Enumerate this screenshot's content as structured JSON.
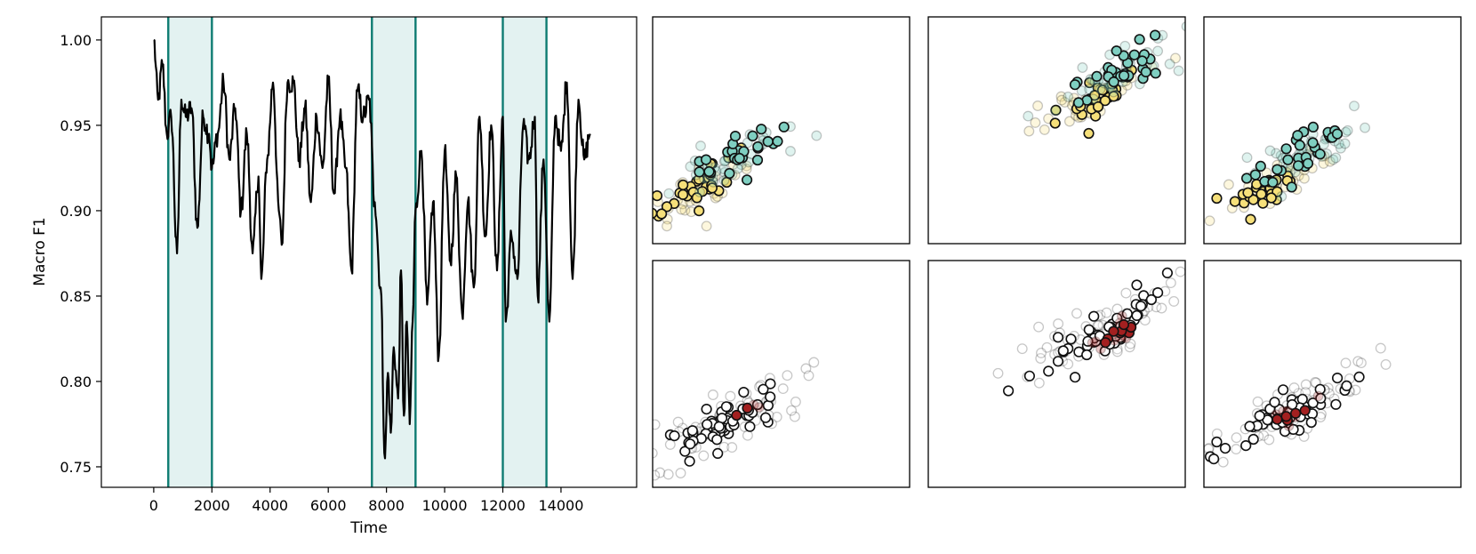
{
  "chart_data": [
    {
      "type": "line",
      "xlabel": "Time",
      "ylabel": "Macro F1",
      "xlim": [
        -1800,
        16600
      ],
      "ylim": [
        0.738,
        1.0135
      ],
      "x_ticks": [
        0,
        2000,
        4000,
        6000,
        8000,
        10000,
        12000,
        14000
      ],
      "y_ticks": [
        0.75,
        0.8,
        0.85,
        0.9,
        0.95,
        1.0
      ],
      "y_tick_labels": [
        "0.75",
        "0.80",
        "0.85",
        "0.90",
        "0.95",
        "1.00"
      ],
      "line_color": "#000000",
      "shaded_windows": [
        [
          500,
          2000
        ],
        [
          7500,
          9000
        ],
        [
          12000,
          13500
        ]
      ],
      "shade_color": "#e3f2f1",
      "window_border_color": "#0e7c72",
      "series": [
        {
          "x": [
            0,
            150,
            300,
            450,
            600,
            800,
            950,
            1100,
            1300,
            1500,
            1700,
            1900,
            2000,
            2200,
            2400,
            2600,
            2800,
            3000,
            3200,
            3400,
            3600,
            3700,
            3900,
            4100,
            4300,
            4400,
            4600,
            4800,
            5000,
            5200,
            5400,
            5600,
            5800,
            6000,
            6200,
            6400,
            6600,
            6800,
            7000,
            7200,
            7400,
            7600,
            7800,
            7950,
            8050,
            8150,
            8250,
            8400,
            8500,
            8600,
            8700,
            8800,
            8900,
            9000,
            9200,
            9400,
            9600,
            9800,
            10000,
            10200,
            10400,
            10600,
            10800,
            11000,
            11200,
            11400,
            11600,
            11800,
            12000,
            12100,
            12300,
            12500,
            12700,
            12900,
            13100,
            13200,
            13400,
            13600,
            13800,
            14000,
            14200,
            14400,
            14600,
            14800,
            15000
          ],
          "y": [
            1.0,
            0.965,
            0.985,
            0.945,
            0.955,
            0.875,
            0.965,
            0.955,
            0.96,
            0.89,
            0.955,
            0.945,
            0.925,
            0.945,
            0.975,
            0.93,
            0.96,
            0.9,
            0.945,
            0.875,
            0.92,
            0.86,
            0.93,
            0.975,
            0.9,
            0.88,
            0.975,
            0.975,
            0.93,
            0.96,
            0.905,
            0.955,
            0.925,
            0.975,
            0.91,
            0.955,
            0.925,
            0.865,
            0.97,
            0.955,
            0.965,
            0.905,
            0.855,
            0.755,
            0.805,
            0.77,
            0.82,
            0.79,
            0.865,
            0.78,
            0.835,
            0.775,
            0.835,
            0.9,
            0.935,
            0.845,
            0.905,
            0.815,
            0.935,
            0.87,
            0.92,
            0.84,
            0.905,
            0.855,
            0.955,
            0.885,
            0.95,
            0.865,
            0.955,
            0.835,
            0.885,
            0.86,
            0.95,
            0.93,
            0.955,
            0.85,
            0.93,
            0.835,
            0.955,
            0.935,
            0.975,
            0.86,
            0.965,
            0.93,
            0.945
          ]
        }
      ]
    },
    {
      "type": "scatter",
      "panel": "scatter-row1-col1",
      "center": [
        0.27,
        0.27
      ],
      "clusters": [
        {
          "center": [
            0.18,
            0.24
          ],
          "fill": "#f6e07a",
          "n": 40,
          "spread": [
            0.11,
            0.08
          ]
        },
        {
          "center": [
            0.34,
            0.39
          ],
          "fill": "#7fcfc1",
          "n": 36,
          "spread": [
            0.11,
            0.07
          ]
        }
      ]
    },
    {
      "type": "scatter",
      "panel": "scatter-row1-col2",
      "clusters": [
        {
          "center": [
            0.62,
            0.62
          ],
          "fill": "#f6e07a",
          "n": 40,
          "spread": [
            0.11,
            0.08
          ]
        },
        {
          "center": [
            0.76,
            0.76
          ],
          "fill": "#7fcfc1",
          "n": 40,
          "spread": [
            0.11,
            0.08
          ]
        }
      ]
    },
    {
      "type": "scatter",
      "panel": "scatter-row1-col3",
      "clusters": [
        {
          "center": [
            0.25,
            0.24
          ],
          "fill": "#f6e07a",
          "n": 36,
          "spread": [
            0.11,
            0.07
          ]
        },
        {
          "center": [
            0.4,
            0.4
          ],
          "fill": "#7fcfc1",
          "n": 40,
          "spread": [
            0.11,
            0.08
          ]
        }
      ],
      "outlier": {
        "x": 0.05,
        "y": 0.2,
        "fill": "#f6e07a"
      }
    },
    {
      "type": "scatter",
      "panel": "scatter-row2-col1",
      "clusters": [
        {
          "center": [
            0.27,
            0.27
          ],
          "fill": "#ffffff",
          "n": 70,
          "spread": [
            0.15,
            0.09
          ]
        },
        {
          "center": [
            0.35,
            0.33
          ],
          "fill": "#a32020",
          "n": 3,
          "spread": [
            0.03,
            0.01
          ]
        }
      ]
    },
    {
      "type": "scatter",
      "panel": "scatter-row2-col2",
      "clusters": [
        {
          "center": [
            0.7,
            0.7
          ],
          "fill": "#ffffff",
          "n": 70,
          "spread": [
            0.15,
            0.09
          ]
        },
        {
          "center": [
            0.72,
            0.68
          ],
          "fill": "#a32020",
          "n": 10,
          "spread": [
            0.05,
            0.04
          ]
        }
      ]
    },
    {
      "type": "scatter",
      "panel": "scatter-row2-col3",
      "clusters": [
        {
          "center": [
            0.34,
            0.33
          ],
          "fill": "#ffffff",
          "n": 70,
          "spread": [
            0.15,
            0.09
          ]
        },
        {
          "center": [
            0.33,
            0.31
          ],
          "fill": "#a32020",
          "n": 7,
          "spread": [
            0.04,
            0.06
          ]
        }
      ],
      "outlier": {
        "x": 0.05,
        "y": 0.2,
        "fill": "#ffffff"
      }
    }
  ]
}
